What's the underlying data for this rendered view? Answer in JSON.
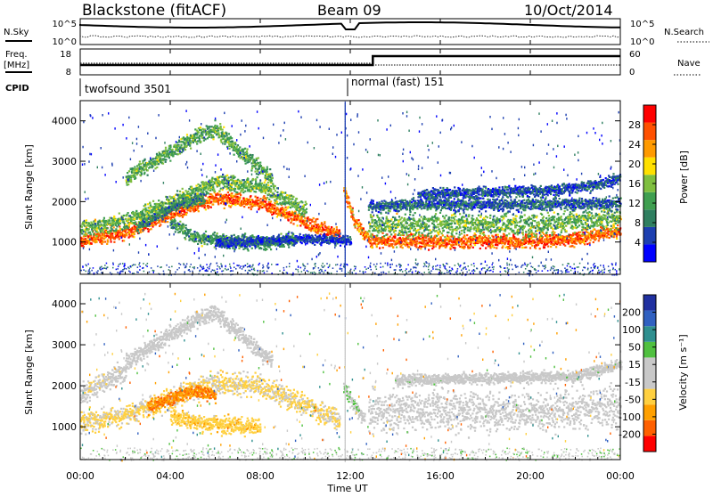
{
  "header": {
    "station": "Blackstone (fitACF)",
    "beam": "Beam 09",
    "date": "10/Oct/2014"
  },
  "top_panels": {
    "nsky_label": "N.Sky",
    "nsearch_label": "N.Search",
    "noise_ticks_left": [
      "10^5",
      "10^0"
    ],
    "noise_ticks_right": [
      "10^5",
      "10^0"
    ],
    "freq_label_1": "Freq.",
    "freq_label_2": "[MHz]",
    "freq_ticks": [
      "18",
      "8"
    ],
    "nave_label": "Nave",
    "nave_ticks": [
      "60",
      "0"
    ],
    "cpid_label": "CPID",
    "cpid_1": "twofsound 3501",
    "cpid_2": "normal (fast) 151"
  },
  "colors": {
    "power": [
      "#0000ff",
      "#1d3fb0",
      "#2f7f60",
      "#3f9f50",
      "#7fbf3f",
      "#ffe000",
      "#ff9a00",
      "#ff5000",
      "#ff0000"
    ],
    "velocity": [
      "#ff0000",
      "#ff6000",
      "#ffa000",
      "#ffd040",
      "#c8c8c8",
      "#c8c8c8",
      "#50c040",
      "#2f8f8f",
      "#3060c0",
      "#2030a0"
    ]
  },
  "chart_data": [
    {
      "type": "heatmap",
      "name": "power",
      "ylabel": "Slant Range [km]",
      "xlabel": "",
      "y_ticks": [
        "1000",
        "2000",
        "3000",
        "4000"
      ],
      "ylim": [
        200,
        4500
      ],
      "colorbar_label": "Power [dB]",
      "colorbar_ticks": [
        "4",
        "8",
        "12",
        "16",
        "20",
        "24",
        "28"
      ],
      "colorbar_range": [
        0,
        32
      ],
      "bands": [
        {
          "x": [
            0,
            2,
            4,
            6,
            8,
            10,
            11.5
          ],
          "y": [
            1050,
            1250,
            1700,
            2100,
            2000,
            1500,
            1200
          ],
          "width": 220,
          "value": 26
        },
        {
          "x": [
            0,
            2,
            4,
            6,
            8,
            10
          ],
          "y": [
            1350,
            1550,
            2000,
            2500,
            2400,
            1800
          ],
          "width": 260,
          "value": 14
        },
        {
          "x": [
            2,
            3.5,
            5,
            6,
            7,
            8.5
          ],
          "y": [
            2600,
            3100,
            3600,
            3800,
            3300,
            2600
          ],
          "width": 260,
          "value": 13
        },
        {
          "x": [
            2.5,
            3.5,
            4.5,
            5.5
          ],
          "y": [
            1400,
            1700,
            2000,
            2100
          ],
          "width": 180,
          "value": 10
        },
        {
          "x": [
            4,
            5,
            6.5,
            8,
            9.5
          ],
          "y": [
            1500,
            1150,
            1050,
            1000,
            1100
          ],
          "width": 220,
          "value": 11
        },
        {
          "x": [
            11.7,
            12.2,
            12.8
          ],
          "y": [
            2300,
            1500,
            1100
          ],
          "width": 200,
          "value": 24
        },
        {
          "x": [
            12.8,
            14,
            16,
            18,
            20,
            22,
            24
          ],
          "y": [
            1050,
            1050,
            1030,
            1050,
            1050,
            1100,
            1300
          ],
          "width": 220,
          "value": 26
        },
        {
          "x": [
            12.8,
            14,
            16,
            18,
            20,
            22,
            24
          ],
          "y": [
            1400,
            1450,
            1450,
            1450,
            1450,
            1500,
            1650
          ],
          "width": 380,
          "value": 14
        },
        {
          "x": [
            12.8,
            15,
            18,
            21,
            24
          ],
          "y": [
            1900,
            1950,
            1950,
            1950,
            2000
          ],
          "width": 200,
          "value": 7
        },
        {
          "x": [
            15,
            18,
            21,
            23,
            24
          ],
          "y": [
            2200,
            2250,
            2300,
            2450,
            2600
          ],
          "width": 180,
          "value": 6
        },
        {
          "x": [
            6,
            8,
            10,
            12
          ],
          "y": [
            1000,
            1050,
            1100,
            1050
          ],
          "width": 160,
          "value": 5
        }
      ]
    },
    {
      "type": "heatmap",
      "name": "velocity",
      "ylabel": "Slant Range [km]",
      "xlabel": "Time UT",
      "x_ticks": [
        "00:00",
        "04:00",
        "08:00",
        "12:00",
        "16:00",
        "20:00",
        "00:00"
      ],
      "x_tick_values": [
        0,
        4,
        8,
        12,
        16,
        20,
        24
      ],
      "y_ticks": [
        "1000",
        "2000",
        "3000",
        "4000"
      ],
      "ylim": [
        200,
        4500
      ],
      "colorbar_label": "Velocity [m s⁻¹]",
      "colorbar_ticks": [
        "-200",
        "-100",
        "-50",
        "-15",
        "15",
        "50",
        "100",
        "200"
      ],
      "colorbar_range": [
        -250,
        250
      ],
      "bands": [
        {
          "x": [
            0,
            2,
            4,
            6,
            8,
            10,
            11.5
          ],
          "y": [
            1100,
            1300,
            1700,
            2100,
            2000,
            1500,
            1200
          ],
          "width": 360,
          "value": -55
        },
        {
          "x": [
            2,
            3.5,
            5,
            6,
            7,
            8.5
          ],
          "y": [
            2600,
            3100,
            3600,
            3800,
            3300,
            2600
          ],
          "width": 260,
          "value": 5
        },
        {
          "x": [
            3,
            4,
            5,
            6
          ],
          "y": [
            1500,
            1700,
            1900,
            1800
          ],
          "width": 220,
          "value": -150
        },
        {
          "x": [
            4,
            5,
            6.5,
            8
          ],
          "y": [
            1300,
            1150,
            1050,
            1000
          ],
          "width": 280,
          "value": -80
        },
        {
          "x": [
            0,
            1,
            2
          ],
          "y": [
            1800,
            2100,
            2400
          ],
          "width": 320,
          "value": -30
        },
        {
          "x": [
            11.7,
            12.2,
            12.6
          ],
          "y": [
            2000,
            1500,
            1200
          ],
          "width": 220,
          "value": 40
        },
        {
          "x": [
            12.8,
            14,
            16,
            18,
            20,
            22,
            24
          ],
          "y": [
            1400,
            1400,
            1400,
            1400,
            1400,
            1450,
            1500
          ],
          "width": 650,
          "value": 0
        },
        {
          "x": [
            14,
            18,
            22,
            24
          ],
          "y": [
            2150,
            2200,
            2250,
            2550
          ],
          "width": 180,
          "value": 20
        }
      ]
    }
  ]
}
